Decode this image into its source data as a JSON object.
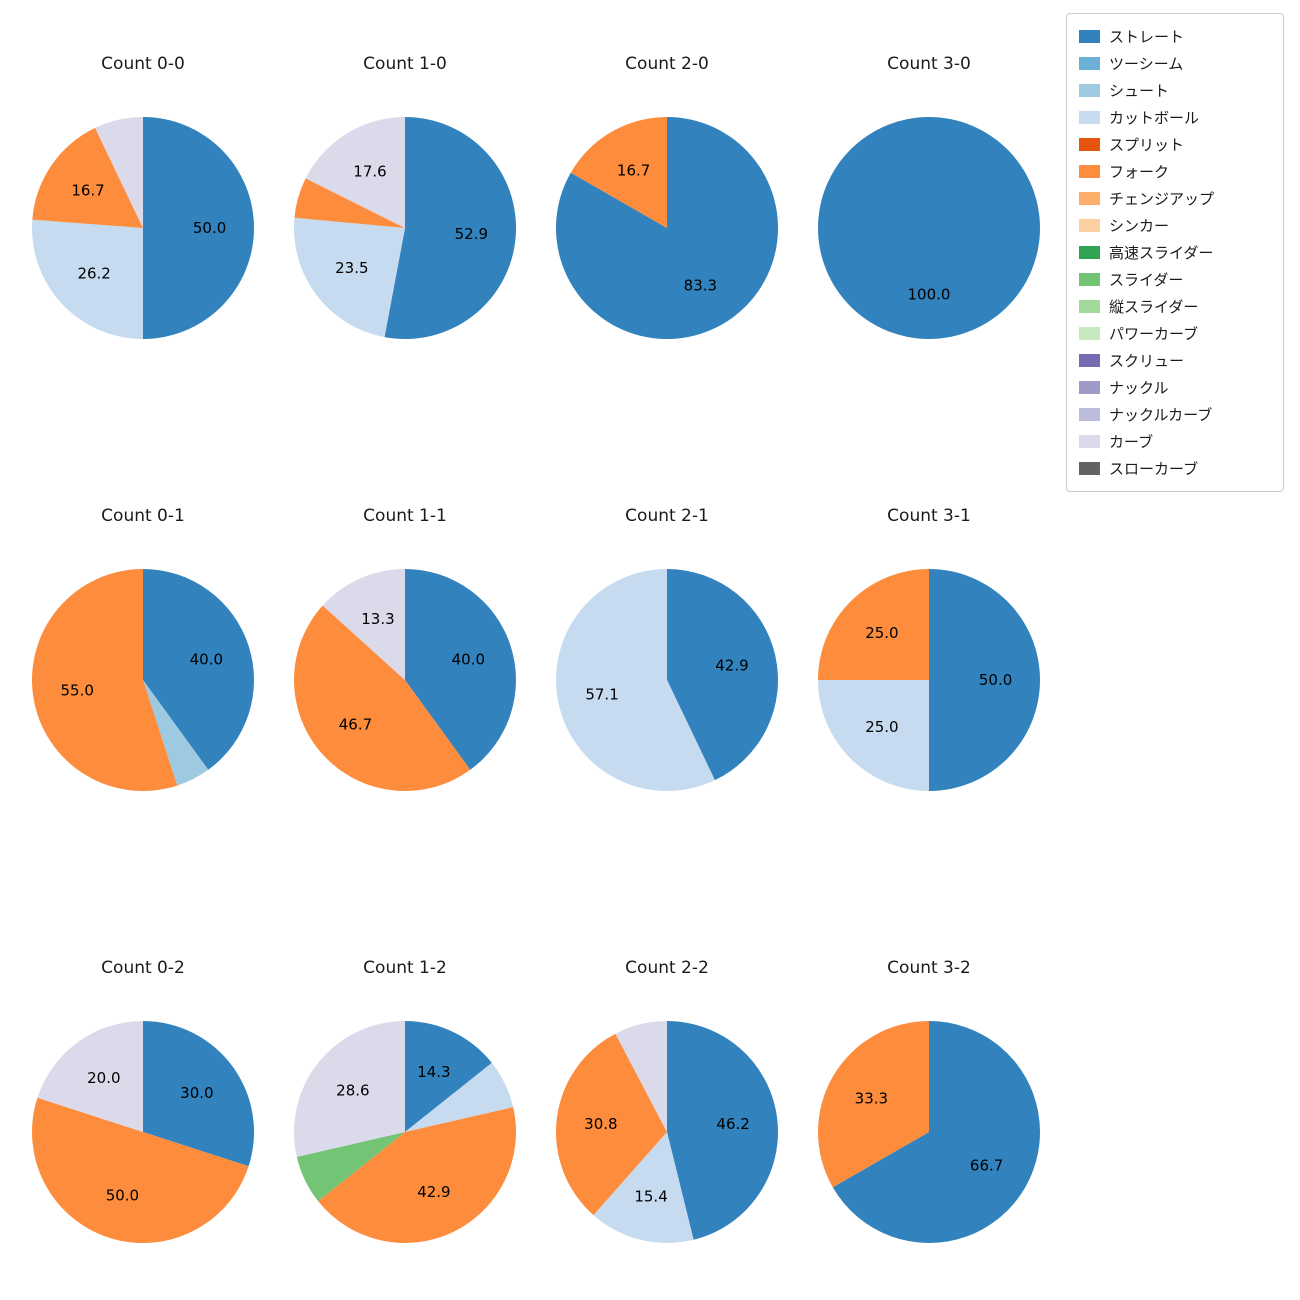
{
  "palette": {
    "ストレート": "#3182bd",
    "ツーシーム": "#6baed6",
    "シュート": "#9ecae1",
    "カットボール": "#c6dbef",
    "スプリット": "#e6550d",
    "フォーク": "#fd8d3c",
    "チェンジアップ": "#fdae6b",
    "シンカー": "#fdd0a2",
    "高速スライダー": "#31a354",
    "スライダー": "#74c476",
    "縦スライダー": "#a1d99b",
    "パワーカーブ": "#c7e9c0",
    "スクリュー": "#756bb1",
    "ナックル": "#9e9ac8",
    "ナックルカーブ": "#bcbddc",
    "カーブ": "#dadaeb",
    "スローカーブ": "#636363"
  },
  "legend": {
    "items": [
      "ストレート",
      "ツーシーム",
      "シュート",
      "カットボール",
      "スプリット",
      "フォーク",
      "チェンジアップ",
      "シンカー",
      "高速スライダー",
      "スライダー",
      "縦スライダー",
      "パワーカーブ",
      "スクリュー",
      "ナックル",
      "ナックルカーブ",
      "カーブ",
      "スローカーブ"
    ]
  },
  "chart_data": [
    {
      "type": "pie",
      "title": "Count 0-0",
      "slices": [
        {
          "label": "ストレート",
          "value": 50.0,
          "show_pct": true
        },
        {
          "label": "カットボール",
          "value": 26.2,
          "show_pct": true
        },
        {
          "label": "フォーク",
          "value": 16.7,
          "show_pct": true
        },
        {
          "label": "カーブ",
          "value": 7.1,
          "show_pct": false
        }
      ]
    },
    {
      "type": "pie",
      "title": "Count 1-0",
      "slices": [
        {
          "label": "ストレート",
          "value": 52.9,
          "show_pct": true
        },
        {
          "label": "カットボール",
          "value": 23.5,
          "show_pct": true
        },
        {
          "label": "フォーク",
          "value": 5.9,
          "show_pct": false
        },
        {
          "label": "カーブ",
          "value": 17.6,
          "show_pct": true
        }
      ]
    },
    {
      "type": "pie",
      "title": "Count 2-0",
      "slices": [
        {
          "label": "ストレート",
          "value": 83.3,
          "show_pct": true
        },
        {
          "label": "フォーク",
          "value": 16.7,
          "show_pct": true
        }
      ]
    },
    {
      "type": "pie",
      "title": "Count 3-0",
      "slices": [
        {
          "label": "ストレート",
          "value": 100.0,
          "show_pct": true
        }
      ]
    },
    {
      "type": "pie",
      "title": "Count 0-1",
      "slices": [
        {
          "label": "ストレート",
          "value": 40.0,
          "show_pct": true
        },
        {
          "label": "シュート",
          "value": 5.0,
          "show_pct": false
        },
        {
          "label": "フォーク",
          "value": 55.0,
          "show_pct": true
        }
      ]
    },
    {
      "type": "pie",
      "title": "Count 1-1",
      "slices": [
        {
          "label": "ストレート",
          "value": 40.0,
          "show_pct": true
        },
        {
          "label": "フォーク",
          "value": 46.7,
          "show_pct": true
        },
        {
          "label": "カーブ",
          "value": 13.3,
          "show_pct": true
        }
      ]
    },
    {
      "type": "pie",
      "title": "Count 2-1",
      "slices": [
        {
          "label": "ストレート",
          "value": 42.9,
          "show_pct": true
        },
        {
          "label": "カットボール",
          "value": 57.1,
          "show_pct": true
        }
      ]
    },
    {
      "type": "pie",
      "title": "Count 3-1",
      "slices": [
        {
          "label": "ストレート",
          "value": 50.0,
          "show_pct": true
        },
        {
          "label": "カットボール",
          "value": 25.0,
          "show_pct": true
        },
        {
          "label": "フォーク",
          "value": 25.0,
          "show_pct": true
        }
      ]
    },
    {
      "type": "pie",
      "title": "Count 0-2",
      "slices": [
        {
          "label": "ストレート",
          "value": 30.0,
          "show_pct": true
        },
        {
          "label": "フォーク",
          "value": 50.0,
          "show_pct": true
        },
        {
          "label": "カーブ",
          "value": 20.0,
          "show_pct": true
        }
      ]
    },
    {
      "type": "pie",
      "title": "Count 1-2",
      "slices": [
        {
          "label": "ストレート",
          "value": 14.3,
          "show_pct": true
        },
        {
          "label": "カットボール",
          "value": 7.1,
          "show_pct": false
        },
        {
          "label": "フォーク",
          "value": 42.9,
          "show_pct": true
        },
        {
          "label": "スライダー",
          "value": 7.1,
          "show_pct": false
        },
        {
          "label": "カーブ",
          "value": 28.6,
          "show_pct": true
        }
      ]
    },
    {
      "type": "pie",
      "title": "Count 2-2",
      "slices": [
        {
          "label": "ストレート",
          "value": 46.2,
          "show_pct": true
        },
        {
          "label": "カットボール",
          "value": 15.4,
          "show_pct": true
        },
        {
          "label": "フォーク",
          "value": 30.8,
          "show_pct": true
        },
        {
          "label": "カーブ",
          "value": 7.7,
          "show_pct": false
        }
      ]
    },
    {
      "type": "pie",
      "title": "Count 3-2",
      "slices": [
        {
          "label": "ストレート",
          "value": 66.7,
          "show_pct": true
        },
        {
          "label": "フォーク",
          "value": 33.3,
          "show_pct": true
        }
      ]
    }
  ]
}
